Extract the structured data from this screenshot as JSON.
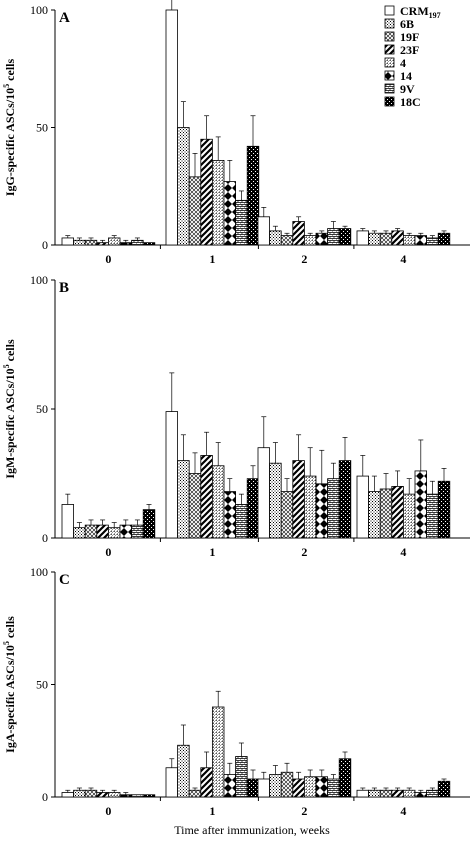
{
  "categories": [
    "0",
    "1",
    "2",
    "4"
  ],
  "xlabel": "Time after immunization, weeks",
  "legend": [
    {
      "base": "CRM",
      "sub": "197",
      "pattern": "pat-crm"
    },
    {
      "base": "6B",
      "sub": "",
      "pattern": "pat-6b"
    },
    {
      "base": "19F",
      "sub": "",
      "pattern": "pat-19f"
    },
    {
      "base": "23F",
      "sub": "",
      "pattern": "pat-23f"
    },
    {
      "base": "4",
      "sub": "",
      "pattern": "pat-4"
    },
    {
      "base": "14",
      "sub": "",
      "pattern": "pat-14"
    },
    {
      "base": "9V",
      "sub": "",
      "pattern": "pat-9v"
    },
    {
      "base": "18C",
      "sub": "",
      "pattern": "pat-18c"
    }
  ],
  "chart_data": [
    {
      "type": "bar",
      "panel": "A",
      "ylabel_pre": "IgG-specific ASCs/10",
      "ylabel_sup": "5",
      "ylabel_post": " cells",
      "ylim": [
        0,
        100
      ],
      "yticks": [
        0,
        50,
        100
      ],
      "categories": [
        "0",
        "1",
        "2",
        "4"
      ],
      "series": [
        {
          "name": "CRM197",
          "values": [
            3,
            100,
            12,
            6
          ],
          "errors": [
            1,
            20,
            4,
            1
          ]
        },
        {
          "name": "6B",
          "values": [
            2,
            50,
            6,
            5
          ],
          "errors": [
            1,
            11,
            2,
            1
          ]
        },
        {
          "name": "19F",
          "values": [
            2,
            29,
            4,
            5
          ],
          "errors": [
            1,
            10,
            1,
            1
          ]
        },
        {
          "name": "23F",
          "values": [
            1,
            45,
            10,
            6
          ],
          "errors": [
            1,
            10,
            2,
            1
          ]
        },
        {
          "name": "4",
          "values": [
            3,
            36,
            4,
            4
          ],
          "errors": [
            1,
            10,
            1,
            1
          ]
        },
        {
          "name": "14",
          "values": [
            1,
            27,
            5,
            4
          ],
          "errors": [
            1,
            9,
            1,
            1
          ]
        },
        {
          "name": "9V",
          "values": [
            2,
            19,
            7,
            3
          ],
          "errors": [
            1,
            4,
            3,
            1
          ]
        },
        {
          "name": "18C",
          "values": [
            1,
            42,
            7,
            5
          ],
          "errors": [
            0,
            13,
            1,
            1
          ]
        }
      ]
    },
    {
      "type": "bar",
      "panel": "B",
      "ylabel_pre": "IgM-specific ASCs/10",
      "ylabel_sup": "5",
      "ylabel_post": " cells",
      "ylim": [
        0,
        100
      ],
      "yticks": [
        0,
        50,
        100
      ],
      "categories": [
        "0",
        "1",
        "2",
        "4"
      ],
      "series": [
        {
          "name": "CRM197",
          "values": [
            13,
            49,
            35,
            24
          ],
          "errors": [
            4,
            15,
            12,
            8
          ]
        },
        {
          "name": "6B",
          "values": [
            4,
            30,
            29,
            18
          ],
          "errors": [
            2,
            10,
            8,
            6
          ]
        },
        {
          "name": "19F",
          "values": [
            5,
            25,
            18,
            19
          ],
          "errors": [
            2,
            8,
            5,
            6
          ]
        },
        {
          "name": "23F",
          "values": [
            5,
            32,
            30,
            20
          ],
          "errors": [
            2,
            9,
            10,
            6
          ]
        },
        {
          "name": "4",
          "values": [
            4,
            28,
            24,
            17
          ],
          "errors": [
            2,
            9,
            11,
            6
          ]
        },
        {
          "name": "14",
          "values": [
            5,
            18,
            21,
            26
          ],
          "errors": [
            2,
            5,
            13,
            12
          ]
        },
        {
          "name": "9V",
          "values": [
            5,
            13,
            23,
            17
          ],
          "errors": [
            2,
            4,
            6,
            5
          ]
        },
        {
          "name": "18C",
          "values": [
            11,
            23,
            30,
            22
          ],
          "errors": [
            2,
            5,
            9,
            5
          ]
        }
      ]
    },
    {
      "type": "bar",
      "panel": "C",
      "ylabel_pre": "IgA-specific ASCs/10",
      "ylabel_sup": "5",
      "ylabel_post": " cells",
      "ylim": [
        0,
        100
      ],
      "yticks": [
        0,
        50,
        100
      ],
      "categories": [
        "0",
        "1",
        "2",
        "4"
      ],
      "series": [
        {
          "name": "CRM197",
          "values": [
            2,
            13,
            8,
            3
          ],
          "errors": [
            1,
            4,
            3,
            1
          ]
        },
        {
          "name": "6B",
          "values": [
            3,
            23,
            10,
            3
          ],
          "errors": [
            1,
            9,
            4,
            1
          ]
        },
        {
          "name": "19F",
          "values": [
            3,
            3,
            11,
            3
          ],
          "errors": [
            1,
            1,
            4,
            1
          ]
        },
        {
          "name": "23F",
          "values": [
            2,
            13,
            8,
            3
          ],
          "errors": [
            1,
            7,
            3,
            1
          ]
        },
        {
          "name": "4",
          "values": [
            2,
            40,
            9,
            3
          ],
          "errors": [
            1,
            7,
            3,
            1
          ]
        },
        {
          "name": "14",
          "values": [
            1,
            10,
            9,
            2
          ],
          "errors": [
            1,
            5,
            3,
            1
          ]
        },
        {
          "name": "9V",
          "values": [
            1,
            18,
            8,
            3
          ],
          "errors": [
            0,
            6,
            2,
            1
          ]
        },
        {
          "name": "18C",
          "values": [
            1,
            8,
            17,
            7
          ],
          "errors": [
            0,
            4,
            3,
            1
          ]
        }
      ]
    }
  ]
}
